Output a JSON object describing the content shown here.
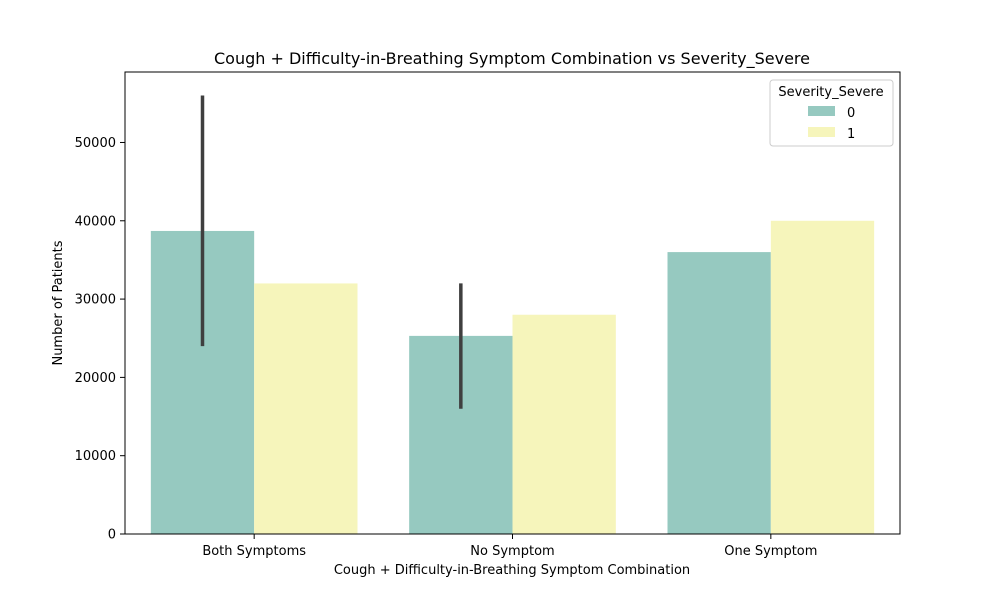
{
  "chart_data": {
    "type": "bar",
    "title": "Cough + Difficulty-in-Breathing Symptom Combination vs Severity_Severe",
    "xlabel": "Cough + Difficulty-in-Breathing Symptom Combination",
    "ylabel": "Number of Patients",
    "categories": [
      "Both Symptoms",
      "No Symptom",
      "One Symptom"
    ],
    "ylim": [
      0,
      59000
    ],
    "yticks": [
      0,
      10000,
      20000,
      30000,
      40000,
      50000
    ],
    "ytick_labels": [
      "0",
      "10000",
      "20000",
      "30000",
      "40000",
      "50000"
    ],
    "legend": {
      "title": "Severity_Severe",
      "placement": "top-right"
    },
    "grid": false,
    "series": [
      {
        "name": "0",
        "color": "#96c9c0",
        "values": [
          38700,
          25300,
          36000
        ],
        "error_low": [
          24000,
          16000,
          null
        ],
        "error_high": [
          56000,
          32000,
          null
        ]
      },
      {
        "name": "1",
        "color": "#f6f5bb",
        "values": [
          32000,
          28000,
          40000
        ],
        "error_low": [
          null,
          null,
          null
        ],
        "error_high": [
          null,
          null,
          null
        ]
      }
    ],
    "errorbar_color": "#3f3f3f"
  }
}
